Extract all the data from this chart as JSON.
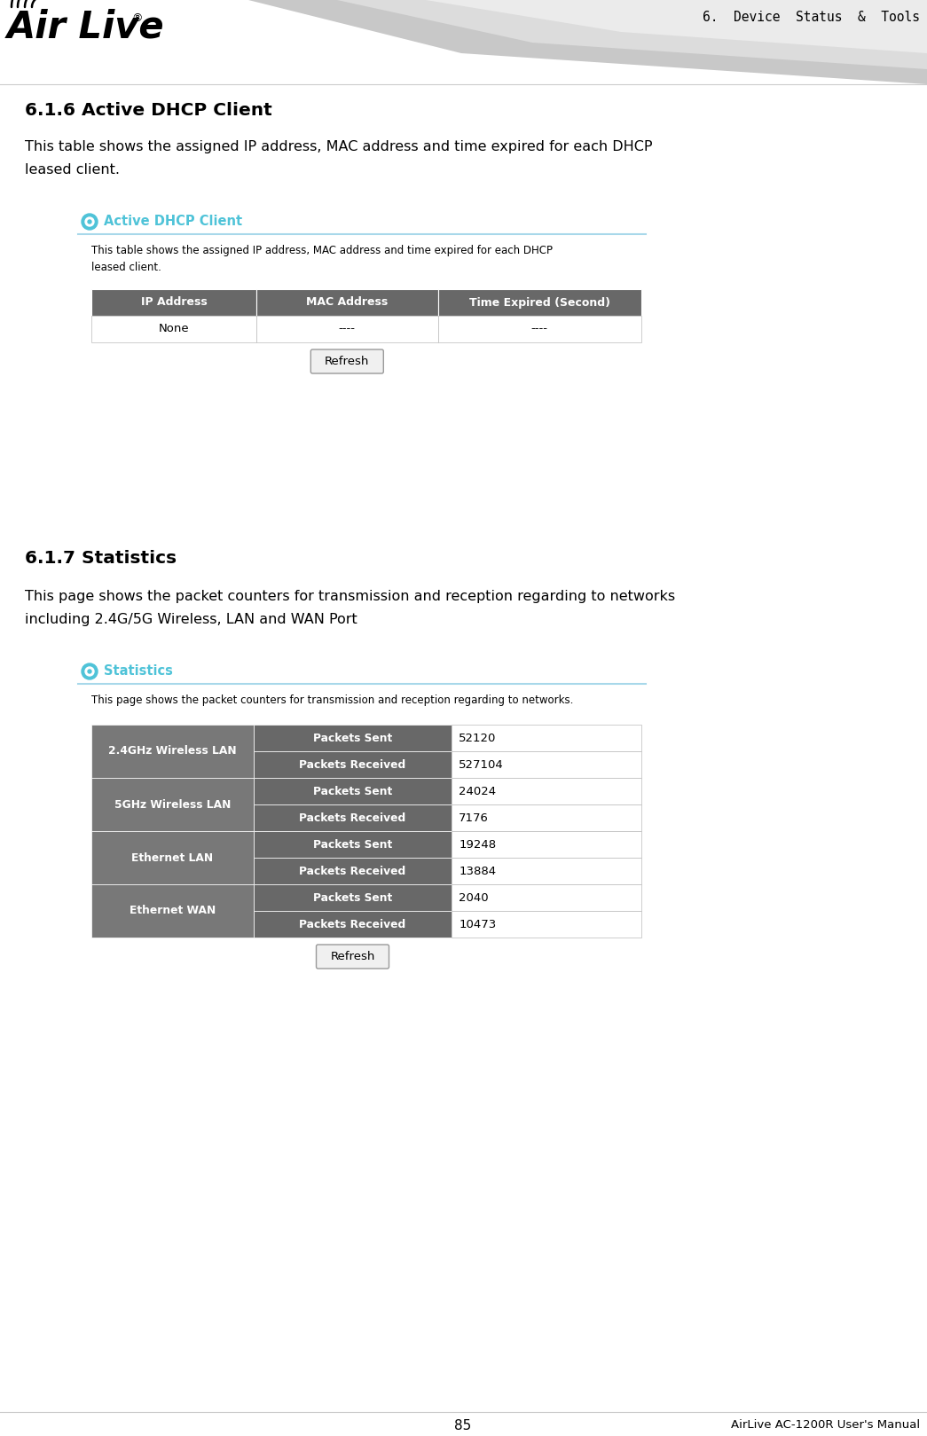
{
  "page_title_right": "6.  Device  Status  &  Tools",
  "bg_color": "#ffffff",
  "section1_heading": "6.1.6 Active DHCP Client",
  "section1_body": "This table shows the assigned IP address, MAC address and time expired for each DHCP\nleased client.",
  "ui_section1_title": "Active DHCP Client",
  "ui_section1_desc": "This table shows the assigned IP address, MAC address and time expired for each DHCP\nleased client.",
  "dhcp_headers": [
    "IP Address",
    "MAC Address",
    "Time Expired (Second)"
  ],
  "dhcp_row": [
    "None",
    "----",
    "----"
  ],
  "section2_heading": "6.1.7 Statistics",
  "section2_body": "This page shows the packet counters for transmission and reception regarding to networks\nincluding 2.4G/5G Wireless, LAN and WAN Port",
  "ui_section2_title": "Statistics",
  "ui_section2_desc": "This page shows the packet counters for transmission and reception regarding to networks.",
  "stats_table": [
    {
      "group": "2.4GHz Wireless LAN",
      "label": "Packets Sent",
      "value": "52120"
    },
    {
      "group": "2.4GHz Wireless LAN",
      "label": "Packets Received",
      "value": "527104"
    },
    {
      "group": "5GHz Wireless LAN",
      "label": "Packets Sent",
      "value": "24024"
    },
    {
      "group": "5GHz Wireless LAN",
      "label": "Packets Received",
      "value": "7176"
    },
    {
      "group": "Ethernet LAN",
      "label": "Packets Sent",
      "value": "19248"
    },
    {
      "group": "Ethernet LAN",
      "label": "Packets Received",
      "value": "13884"
    },
    {
      "group": "Ethernet WAN",
      "label": "Packets Sent",
      "value": "2040"
    },
    {
      "group": "Ethernet WAN",
      "label": "Packets Received",
      "value": "10473"
    }
  ],
  "footer_page": "85",
  "footer_text": "AirLive AC-1200R User's Manual",
  "cyan_color": "#4fc3d8",
  "dark_header_color": "#686868",
  "table_border_color": "#aaaaaa",
  "light_line_color": "#a8d8ea",
  "group_cell_color": "#787878"
}
